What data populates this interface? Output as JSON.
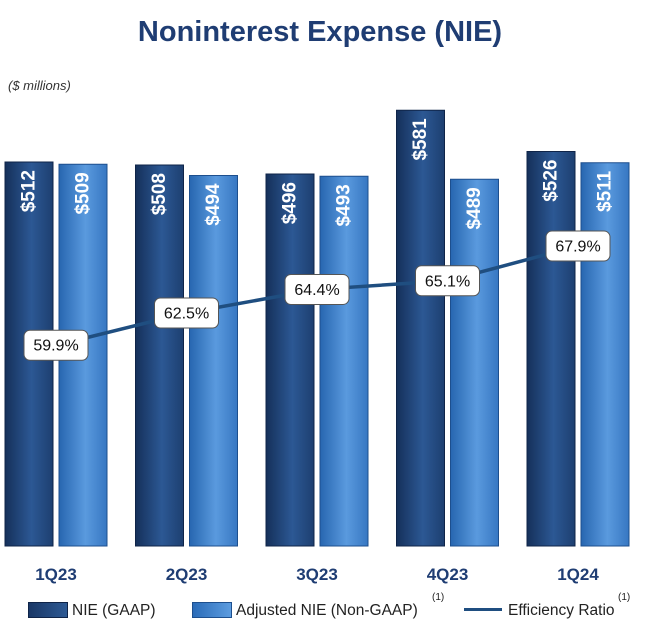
{
  "title": "Noninterest Expense (NIE)",
  "units_label": "($ millions)",
  "chart_data": {
    "type": "bar",
    "categories": [
      "1Q23",
      "2Q23",
      "3Q23",
      "4Q23",
      "1Q24"
    ],
    "ylim": [
      0,
      600
    ],
    "series": [
      {
        "name": "NIE (GAAP)",
        "values": [
          512,
          508,
          496,
          581,
          526
        ],
        "labels": [
          "$512",
          "$508",
          "$496",
          "$581",
          "$526"
        ],
        "color": "#234a80"
      },
      {
        "name": "Adjusted NIE (Non-GAAP)",
        "values": [
          509,
          494,
          493,
          489,
          511
        ],
        "labels": [
          "$509",
          "$494",
          "$493",
          "$489",
          "$511"
        ],
        "color": "#3a7dcc"
      }
    ],
    "line_series": {
      "name": "Efficiency Ratio",
      "values": [
        59.9,
        62.5,
        64.4,
        65.1,
        67.9
      ],
      "labels": [
        "59.9%",
        "62.5%",
        "64.4%",
        "65.1%",
        "67.9%"
      ],
      "color": "#1f4e80"
    },
    "legend_position": "bottom",
    "footnote_marker": "(1)"
  }
}
